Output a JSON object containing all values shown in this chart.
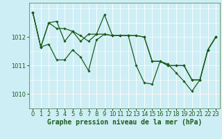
{
  "background_color": "#ceeef5",
  "line_color": "#1a5c1a",
  "marker_color": "#1a5c1a",
  "xlabel": "Graphe pression niveau de la mer (hPa)",
  "xlabel_fontsize": 7,
  "xlim": [
    -0.5,
    23.5
  ],
  "ylim": [
    1009.5,
    1013.2
  ],
  "yticks": [
    1010,
    1011,
    1012
  ],
  "xticks": [
    0,
    1,
    2,
    3,
    4,
    5,
    6,
    7,
    8,
    9,
    10,
    11,
    12,
    13,
    14,
    15,
    16,
    17,
    18,
    19,
    20,
    21,
    22,
    23
  ],
  "tick_fontsize": 6,
  "tick_color": "#1a5c1a",
  "series1": [
    1012.85,
    1011.65,
    1011.75,
    1011.2,
    1011.2,
    1011.55,
    1011.3,
    1010.82,
    1011.9,
    1012.1,
    1012.05,
    1012.05,
    1012.05,
    1011.0,
    1010.4,
    1010.35,
    1011.15,
    1011.05,
    1010.75,
    1010.45,
    1010.1,
    1010.5,
    1011.55,
    1012.0
  ],
  "series2": [
    1012.85,
    1011.65,
    1012.5,
    1012.55,
    1011.85,
    1012.2,
    1011.85,
    1012.1,
    1012.1,
    1012.78,
    1012.05,
    1012.05,
    1012.05,
    1012.05,
    1012.0,
    1011.15,
    1011.15,
    1011.0,
    1011.0,
    1011.0,
    1010.5,
    1010.5,
    1011.55,
    1012.0
  ],
  "series3": [
    1012.85,
    1011.65,
    1012.5,
    1012.3,
    1012.3,
    1012.2,
    1012.05,
    1011.85,
    1012.1,
    1012.1,
    1012.05,
    1012.05,
    1012.05,
    1012.05,
    1012.0,
    1011.15,
    1011.15,
    1011.0,
    1011.0,
    1011.0,
    1010.5,
    1010.5,
    1011.55,
    1012.0
  ],
  "white_grid_color": "#ffffff",
  "red_grid_color": "#ffb0b0",
  "green_spine_color": "#1a5c1a"
}
